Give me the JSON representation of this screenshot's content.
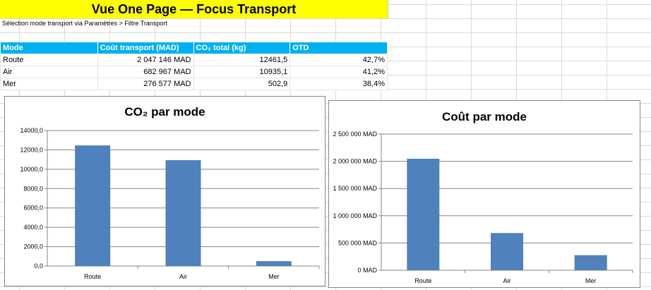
{
  "header": {
    "title": "Vue One Page — Focus Transport",
    "subtitle": "Sélection mode transport via Paramètres > Filtre Transport"
  },
  "table": {
    "columns": [
      "Mode",
      "Coût transport (MAD)",
      "CO₂ total (kg)",
      "OTD"
    ],
    "rows": [
      [
        "Route",
        "2 047 146 MAD",
        "12461,5",
        "42,7%"
      ],
      [
        "Air",
        "682 967 MAD",
        "10935,1",
        "41,2%"
      ],
      [
        "Mer",
        "276 577 MAD",
        "502,9",
        "38,4%"
      ]
    ]
  },
  "chart_data": [
    {
      "type": "bar",
      "title": "CO₂ par mode",
      "categories": [
        "Route",
        "Air",
        "Mer"
      ],
      "values": [
        12461.5,
        10935.1,
        502.9
      ],
      "ylim": [
        0,
        14000
      ],
      "yticks": [
        "0,0",
        "2000,0",
        "4000,0",
        "6000,0",
        "8000,0",
        "10000,0",
        "12000,0",
        "14000,0"
      ],
      "color": "#4f81bd",
      "grid": true
    },
    {
      "type": "bar",
      "title": "Coût par mode",
      "categories": [
        "Route",
        "Air",
        "Mer"
      ],
      "values": [
        2047146,
        682967,
        276577
      ],
      "ylim": [
        0,
        2500000
      ],
      "yticks": [
        "0 MAD",
        "500 000 MAD",
        "1 000 000 MAD",
        "1 500 000 MAD",
        "2 000 000 MAD",
        "2 500 000 MAD"
      ],
      "color": "#4f81bd",
      "grid": true
    }
  ]
}
